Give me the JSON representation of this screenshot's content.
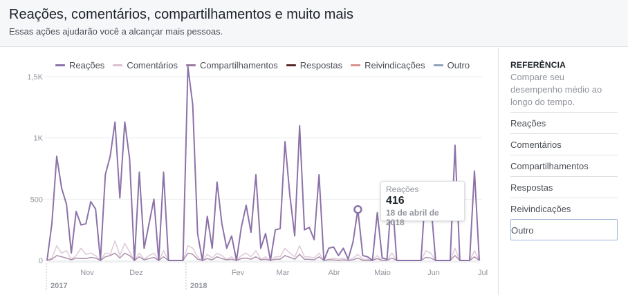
{
  "header": {
    "title": "Reações, comentários, compartilhamentos e muito mais",
    "subtitle": "Essas ações ajudarão você a alcançar mais pessoas."
  },
  "legend": [
    {
      "label": "Reações",
      "color": "#8c72a8"
    },
    {
      "label": "Comentários",
      "color": "#d9bfd0"
    },
    {
      "label": "Compartilhamentos",
      "color": "#9a7a9e"
    },
    {
      "label": "Respostas",
      "color": "#5a2a2a"
    },
    {
      "label": "Reivindicações",
      "color": "#d99090"
    },
    {
      "label": "Outro",
      "color": "#8f9fbc"
    }
  ],
  "sidebar": {
    "title": "REFERÊNCIA",
    "description": "Compare seu desempenho médio ao longo do tempo.",
    "items": [
      "Reações",
      "Comentários",
      "Compartilhamentos",
      "Respostas",
      "Reivindicações",
      "Outro"
    ],
    "selected": "Outro"
  },
  "tooltip": {
    "label": "Reações",
    "value": "416",
    "date": "18 de abril de 2018"
  },
  "chart_data": {
    "type": "line",
    "y_ticks": [
      "0",
      "500",
      "1K",
      "1,5K"
    ],
    "ylim": [
      0,
      1500
    ],
    "x_month_labels": [
      "Nov",
      "Dez",
      "Fev",
      "Mar",
      "Abr",
      "Maio",
      "Jun",
      "Jul"
    ],
    "x_year_labels": [
      "2017",
      "2018"
    ],
    "series": [
      {
        "name": "Reações",
        "color": "#8c72a8",
        "values": [
          0,
          300,
          850,
          590,
          460,
          60,
          400,
          290,
          300,
          480,
          420,
          0,
          700,
          850,
          1130,
          510,
          1130,
          830,
          0,
          720,
          100,
          300,
          500,
          0,
          720,
          0,
          0,
          0,
          0,
          1580,
          1270,
          220,
          0,
          360,
          100,
          640,
          300,
          100,
          200,
          0,
          270,
          450,
          230,
          700,
          100,
          220,
          0,
          250,
          260,
          970,
          530,
          200,
          1100,
          250,
          270,
          170,
          700,
          0,
          100,
          110,
          40,
          100,
          10,
          150,
          416,
          40,
          30,
          0,
          390,
          20,
          10,
          550,
          0,
          0,
          0,
          0,
          0,
          0,
          620,
          480,
          0,
          0,
          0,
          0,
          940,
          0,
          0,
          0,
          730,
          0
        ]
      },
      {
        "name": "Comentários",
        "color": "#d9bfd0",
        "values": [
          0,
          20,
          120,
          60,
          80,
          10,
          40,
          100,
          50,
          60,
          40,
          0,
          60,
          50,
          160,
          40,
          140,
          70,
          0,
          60,
          10,
          40,
          60,
          0,
          80,
          0,
          0,
          0,
          0,
          120,
          100,
          30,
          0,
          50,
          20,
          60,
          40,
          10,
          30,
          0,
          40,
          60,
          30,
          80,
          10,
          30,
          0,
          30,
          30,
          100,
          60,
          30,
          120,
          30,
          30,
          20,
          60,
          0,
          10,
          20,
          10,
          20,
          0,
          20,
          50,
          10,
          10,
          0,
          40,
          0,
          0,
          60,
          0,
          0,
          0,
          0,
          0,
          0,
          80,
          60,
          0,
          0,
          0,
          0,
          100,
          0,
          0,
          0,
          80,
          0
        ]
      },
      {
        "name": "Compartilhamentos",
        "color": "#9a7a9e",
        "values": [
          0,
          10,
          40,
          30,
          20,
          5,
          20,
          15,
          15,
          25,
          20,
          0,
          30,
          40,
          60,
          20,
          60,
          40,
          0,
          30,
          5,
          15,
          25,
          0,
          30,
          0,
          0,
          0,
          0,
          60,
          50,
          10,
          0,
          15,
          5,
          30,
          15,
          5,
          10,
          0,
          15,
          20,
          10,
          30,
          5,
          10,
          0,
          10,
          10,
          40,
          25,
          10,
          50,
          10,
          10,
          5,
          30,
          0,
          5,
          5,
          0,
          5,
          0,
          5,
          20,
          0,
          0,
          0,
          15,
          0,
          0,
          20,
          0,
          0,
          0,
          0,
          0,
          0,
          25,
          20,
          0,
          0,
          0,
          0,
          40,
          0,
          0,
          0,
          30,
          0
        ]
      }
    ]
  }
}
